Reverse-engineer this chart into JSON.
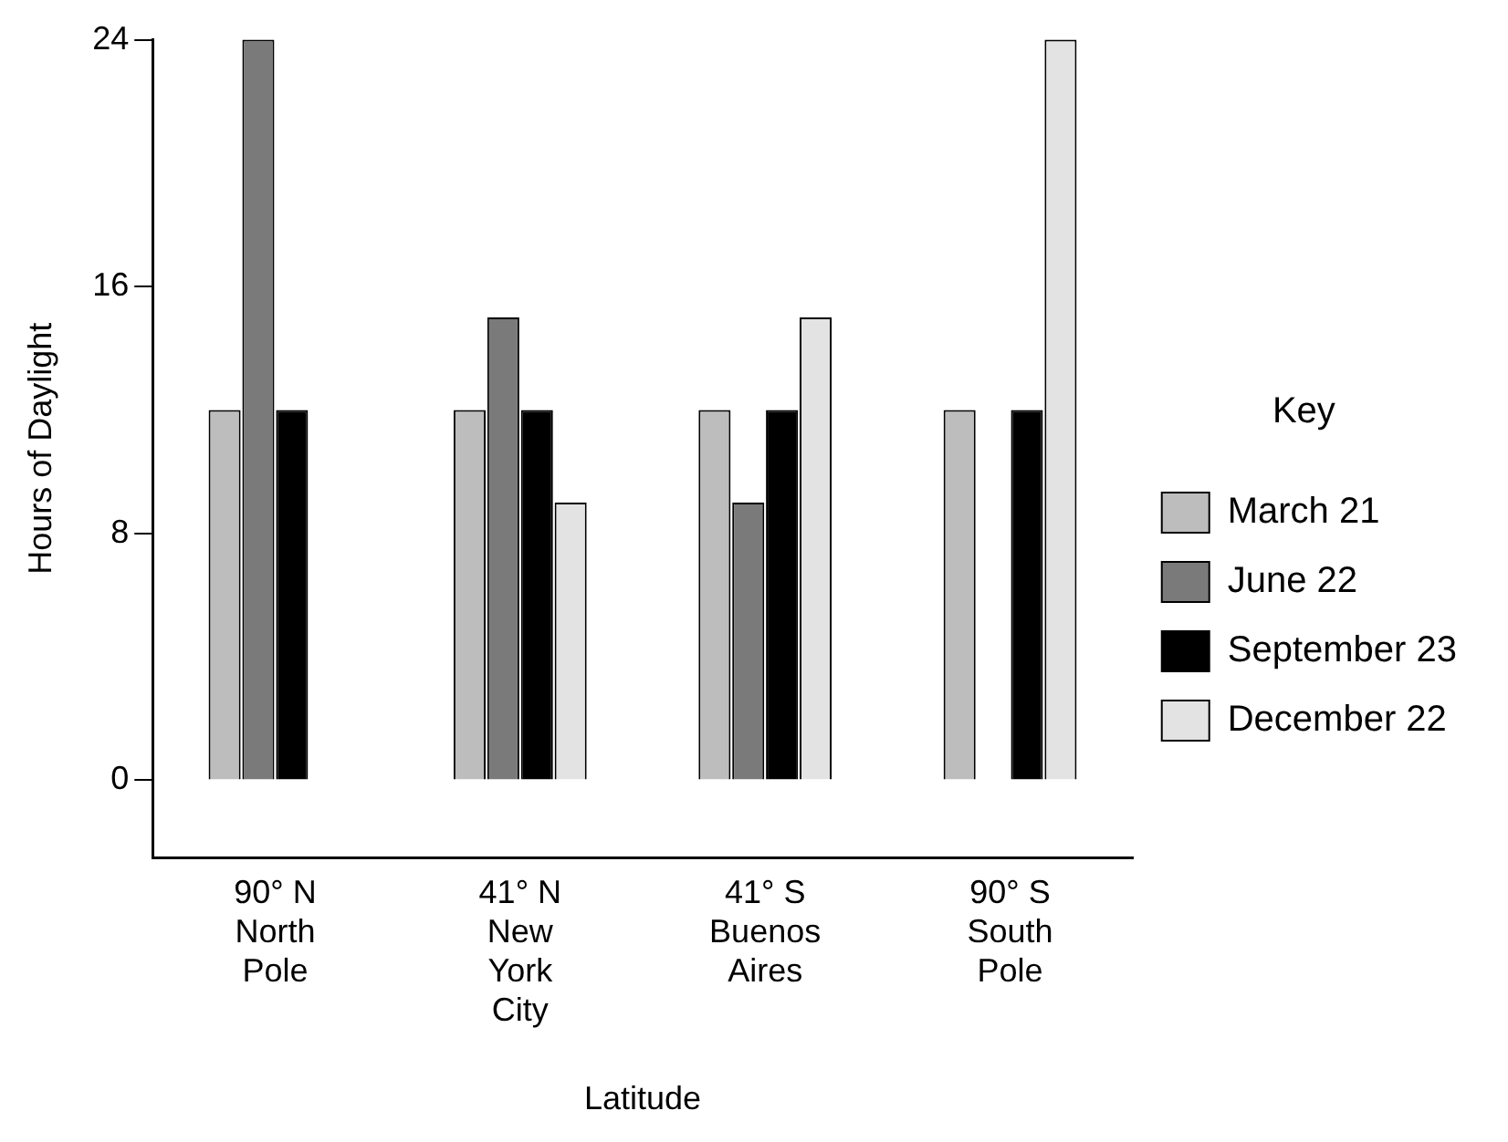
{
  "chart_data": {
    "type": "bar",
    "xlabel": "Latitude",
    "ylabel": "Hours of Daylight",
    "legend_title": "Key",
    "categories": [
      "90° N\nNorth\nPole",
      "41° N\nNew\nYork\nCity",
      "41° S\nBuenos\nAires",
      "90° S\nSouth\nPole"
    ],
    "series": [
      {
        "name": "March 21",
        "color": "#bdbdbd",
        "values": [
          12,
          12,
          12,
          12
        ]
      },
      {
        "name": "June 22",
        "color": "#7a7a7a",
        "values": [
          24,
          15,
          9,
          0
        ]
      },
      {
        "name": "September 23",
        "color": "#000000",
        "values": [
          12,
          12,
          12,
          12
        ]
      },
      {
        "name": "December 22",
        "color": "#e3e3e3",
        "values": [
          0,
          9,
          15,
          24
        ]
      }
    ],
    "ylim": [
      -2.5,
      24
    ],
    "yticks": [
      0,
      8,
      16,
      24
    ],
    "grid": false,
    "legend": "right"
  }
}
